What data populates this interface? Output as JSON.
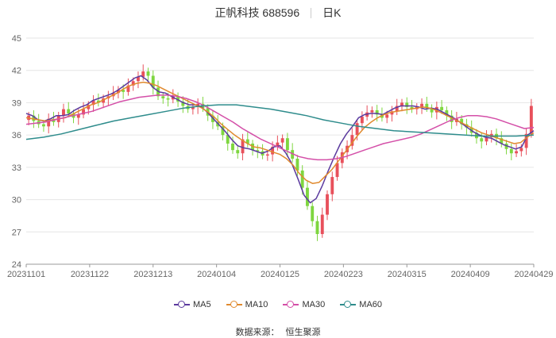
{
  "header": {
    "title": "正帆科技 688596",
    "period": "日K"
  },
  "colors": {
    "up": "#e8505b",
    "down": "#7ed63f",
    "grid": "#e6e6e6",
    "axis": "#999999"
  },
  "legend": [
    {
      "label": "MA5",
      "color": "#5b3a9e"
    },
    {
      "label": "MA10",
      "color": "#e08a2e"
    },
    {
      "label": "MA30",
      "color": "#d44fa8"
    },
    {
      "label": "MA60",
      "color": "#2e8c8c"
    }
  ],
  "source": {
    "label": "数据来源：",
    "name": "恒生聚源"
  },
  "chart_data": {
    "type": "candlestick",
    "x_ticks": [
      "20231101",
      "20231122",
      "20231213",
      "20240104",
      "20240125",
      "20240223",
      "20240315",
      "20240409",
      "20240429"
    ],
    "y_ticks": [
      24,
      27,
      30,
      33,
      36,
      39,
      42,
      45
    ],
    "ylim": [
      24,
      45
    ],
    "grid": true,
    "legend_position": "bottom",
    "candle_closes": [
      37.8,
      37.3,
      37.0,
      36.8,
      37.5,
      37.2,
      37.8,
      38.4,
      38.0,
      37.6,
      37.9,
      38.4,
      38.8,
      39.2,
      39.0,
      39.4,
      39.6,
      39.9,
      40.2,
      40.0,
      40.6,
      41.0,
      41.4,
      41.9,
      41.5,
      40.4,
      39.6,
      39.4,
      39.3,
      39.6,
      39.1,
      38.7,
      38.4,
      38.6,
      38.9,
      38.5,
      37.8,
      37.2,
      36.8,
      36.0,
      35.2,
      34.6,
      34.3,
      35.6,
      35.2,
      34.6,
      34.5,
      34.1,
      34.2,
      34.9,
      35.3,
      35.7,
      34.6,
      33.8,
      32.7,
      31.1,
      29.4,
      28.0,
      26.8,
      28.6,
      30.5,
      32.1,
      33.4,
      34.4,
      35.0,
      36.0,
      37.1,
      37.7,
      38.1,
      38.3,
      37.9,
      37.6,
      37.9,
      38.2,
      38.7,
      39.0,
      38.6,
      38.4,
      38.6,
      38.9,
      38.5,
      38.1,
      38.6,
      38.3,
      37.8,
      37.2,
      37.5,
      37.0,
      36.7,
      36.2,
      35.7,
      35.4,
      35.8,
      36.1,
      35.7,
      35.2,
      34.7,
      34.3,
      34.5,
      34.8,
      36.1,
      38.7
    ],
    "series": [
      {
        "name": "MA5",
        "values": [
          38.0,
          37.8,
          37.4,
          37.3,
          37.5,
          37.8,
          37.8,
          37.9,
          38.3,
          38.6,
          38.8,
          39.2,
          39.4,
          39.6,
          39.8,
          40.1,
          40.5,
          40.9,
          41.3,
          41.5,
          41.1,
          40.4,
          40.0,
          39.9,
          39.6,
          39.3,
          39.0,
          38.8,
          38.8,
          38.6,
          38.1,
          37.5,
          36.9,
          36.3,
          35.6,
          35.0,
          34.8,
          34.7,
          34.5,
          34.3,
          34.5,
          34.9,
          35.0,
          34.3,
          33.3,
          31.9,
          30.4,
          29.7,
          30.1,
          31.3,
          32.7,
          34.0,
          35.2,
          36.1,
          36.8,
          37.6,
          37.9,
          38.0,
          38.0,
          37.9,
          38.2,
          38.5,
          38.7,
          38.7,
          38.7,
          38.6,
          38.4,
          38.5,
          38.4,
          38.1,
          37.8,
          37.5,
          37.1,
          36.7,
          36.3,
          36.0,
          35.8,
          35.7,
          35.4,
          35.1,
          34.9,
          34.7,
          34.9,
          36.0,
          36.4
        ]
      },
      {
        "name": "MA10",
        "values": [
          37.6,
          37.5,
          37.4,
          37.3,
          37.4,
          37.5,
          37.6,
          37.9,
          38.2,
          38.5,
          38.8,
          39.0,
          39.3,
          39.6,
          39.9,
          40.3,
          40.6,
          40.8,
          40.9,
          40.8,
          40.6,
          40.3,
          40.0,
          39.7,
          39.4,
          39.1,
          38.8,
          38.5,
          38.1,
          37.6,
          37.0,
          36.5,
          36.0,
          35.6,
          35.2,
          34.9,
          34.8,
          34.6,
          34.4,
          34.2,
          33.8,
          33.2,
          32.4,
          31.8,
          31.5,
          31.6,
          32.2,
          32.8,
          33.6,
          34.4,
          35.2,
          36.0,
          36.7,
          37.2,
          37.6,
          37.9,
          38.1,
          38.2,
          38.3,
          38.4,
          38.5,
          38.6,
          38.5,
          38.3,
          38.0,
          37.7,
          37.4,
          37.1,
          36.8,
          36.5,
          36.2,
          36.0,
          35.8,
          35.6,
          35.4,
          35.2,
          35.3,
          35.8,
          36.2
        ]
      },
      {
        "name": "MA30",
        "values": [
          37.0,
          37.1,
          37.2,
          37.4,
          37.6,
          37.8,
          38.0,
          38.2,
          38.5,
          38.8,
          39.1,
          39.3,
          39.5,
          39.6,
          39.7,
          39.7,
          39.6,
          39.4,
          39.1,
          38.7,
          38.2,
          37.7,
          37.2,
          36.6,
          36.1,
          35.6,
          35.2,
          34.8,
          34.4,
          34.0,
          33.8,
          33.7,
          33.7,
          33.8,
          34.0,
          34.3,
          34.6,
          34.9,
          35.2,
          35.4,
          35.6,
          35.8,
          36.1,
          36.5,
          36.9,
          37.3,
          37.6,
          37.8,
          37.8,
          37.7,
          37.5,
          37.2,
          36.9,
          36.6,
          36.7
        ]
      },
      {
        "name": "MA60",
        "values": [
          35.6,
          35.8,
          36.1,
          36.5,
          36.9,
          37.3,
          37.6,
          37.9,
          38.2,
          38.5,
          38.7,
          38.8,
          38.8,
          38.6,
          38.4,
          38.1,
          37.8,
          37.4,
          37.1,
          36.8,
          36.6,
          36.4,
          36.3,
          36.2,
          36.1,
          36.0,
          35.9,
          35.9,
          35.9,
          36.0
        ]
      }
    ]
  }
}
